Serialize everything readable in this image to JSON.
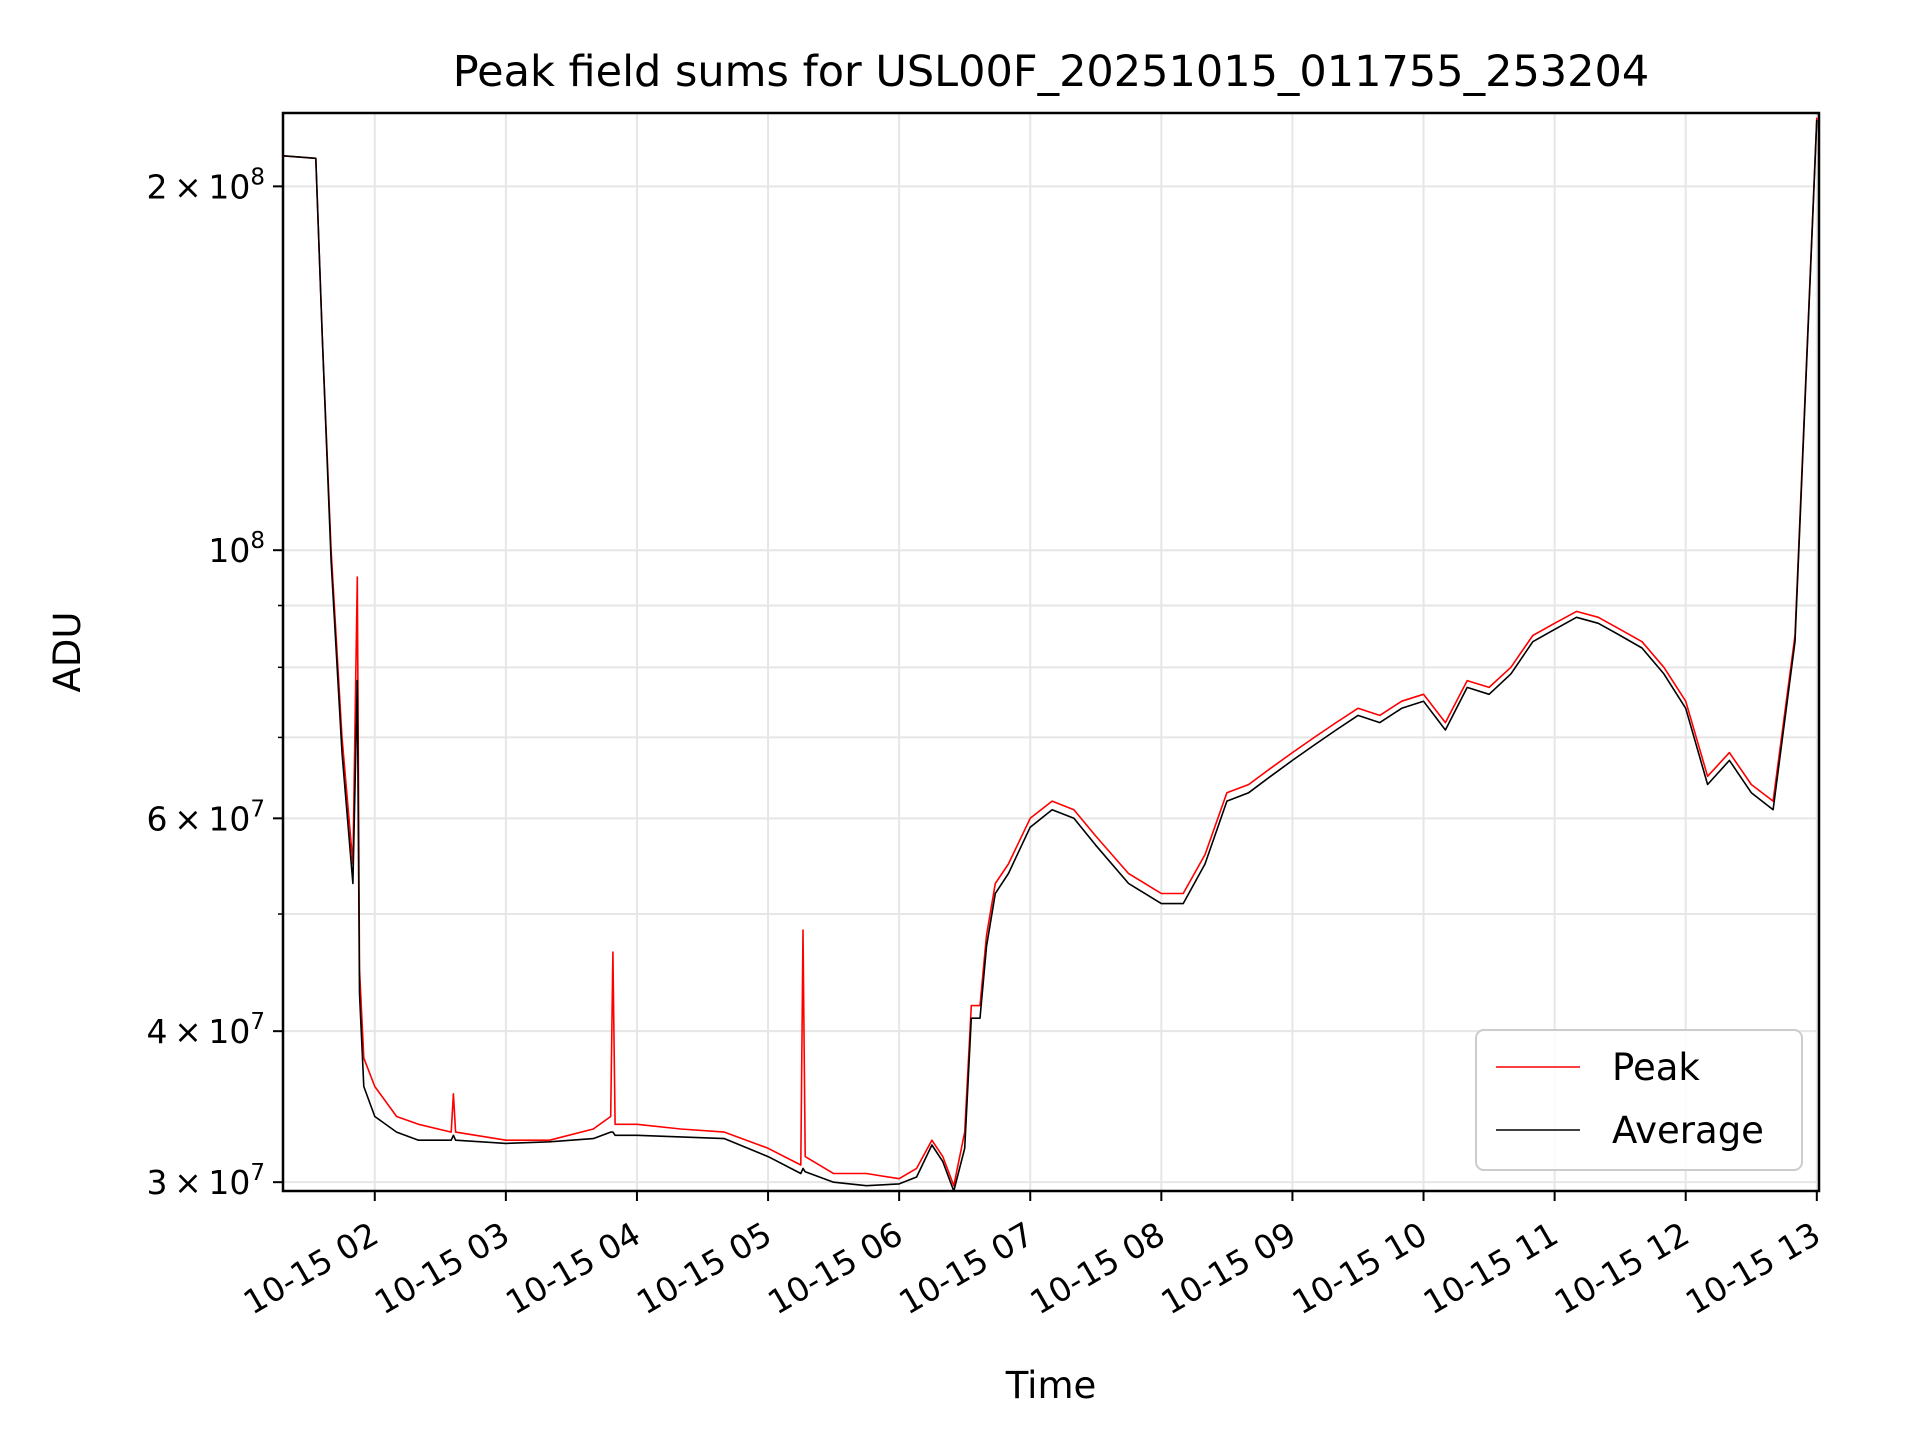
{
  "chart_data": {
    "type": "line",
    "title": "Peak field sums for USL00F_20251015_011755_253204",
    "xlabel": "Time",
    "ylabel": "ADU",
    "yscale": "log",
    "xlim": [
      "2025-10-15 01:18",
      "2025-10-15 13:01"
    ],
    "ylim": [
      29500000,
      230000000
    ],
    "grid": true,
    "legend_position": "lower right",
    "x_ticks": [
      {
        "value": "2025-10-15 02:00",
        "label": "10-15 02"
      },
      {
        "value": "2025-10-15 03:00",
        "label": "10-15 03"
      },
      {
        "value": "2025-10-15 04:00",
        "label": "10-15 04"
      },
      {
        "value": "2025-10-15 05:00",
        "label": "10-15 05"
      },
      {
        "value": "2025-10-15 06:00",
        "label": "10-15 06"
      },
      {
        "value": "2025-10-15 07:00",
        "label": "10-15 07"
      },
      {
        "value": "2025-10-15 08:00",
        "label": "10-15 08"
      },
      {
        "value": "2025-10-15 09:00",
        "label": "10-15 09"
      },
      {
        "value": "2025-10-15 10:00",
        "label": "10-15 10"
      },
      {
        "value": "2025-10-15 11:00",
        "label": "10-15 11"
      },
      {
        "value": "2025-10-15 12:00",
        "label": "10-15 12"
      },
      {
        "value": "2025-10-15 13:00",
        "label": "10-15 13"
      }
    ],
    "y_ticks_major": [
      {
        "value": 30000000,
        "base": "3",
        "exp": "7"
      },
      {
        "value": 40000000,
        "base": "4",
        "exp": "7"
      },
      {
        "value": 60000000,
        "base": "6",
        "exp": "7"
      },
      {
        "value": 100000000,
        "base": "",
        "exp": "8"
      },
      {
        "value": 200000000,
        "base": "2",
        "exp": "8"
      }
    ],
    "y_ticks_minor": [
      50000000,
      70000000,
      80000000,
      90000000
    ],
    "series": [
      {
        "name": "Peak",
        "color": "#ff0000",
        "x": [
          "2025-10-15 01:18",
          "2025-10-15 01:33",
          "2025-10-15 01:36",
          "2025-10-15 01:40",
          "2025-10-15 01:45",
          "2025-10-15 01:50",
          "2025-10-15 01:52",
          "2025-10-15 01:53",
          "2025-10-15 01:55",
          "2025-10-15 02:00",
          "2025-10-15 02:10",
          "2025-10-15 02:20",
          "2025-10-15 02:35",
          "2025-10-15 02:36",
          "2025-10-15 02:37",
          "2025-10-15 03:00",
          "2025-10-15 03:20",
          "2025-10-15 03:40",
          "2025-10-15 03:48",
          "2025-10-15 03:49",
          "2025-10-15 03:50",
          "2025-10-15 04:00",
          "2025-10-15 04:20",
          "2025-10-15 04:40",
          "2025-10-15 05:00",
          "2025-10-15 05:15",
          "2025-10-15 05:16",
          "2025-10-15 05:17",
          "2025-10-15 05:30",
          "2025-10-15 05:45",
          "2025-10-15 06:00",
          "2025-10-15 06:08",
          "2025-10-15 06:15",
          "2025-10-15 06:20",
          "2025-10-15 06:25",
          "2025-10-15 06:30",
          "2025-10-15 06:33",
          "2025-10-15 06:37",
          "2025-10-15 06:40",
          "2025-10-15 06:44",
          "2025-10-15 06:50",
          "2025-10-15 07:00",
          "2025-10-15 07:10",
          "2025-10-15 07:20",
          "2025-10-15 07:30",
          "2025-10-15 07:45",
          "2025-10-15 08:00",
          "2025-10-15 08:10",
          "2025-10-15 08:20",
          "2025-10-15 08:30",
          "2025-10-15 08:40",
          "2025-10-15 08:50",
          "2025-10-15 09:00",
          "2025-10-15 09:10",
          "2025-10-15 09:20",
          "2025-10-15 09:30",
          "2025-10-15 09:40",
          "2025-10-15 09:50",
          "2025-10-15 10:00",
          "2025-10-15 10:10",
          "2025-10-15 10:20",
          "2025-10-15 10:30",
          "2025-10-15 10:40",
          "2025-10-15 10:50",
          "2025-10-15 11:00",
          "2025-10-15 11:10",
          "2025-10-15 11:20",
          "2025-10-15 11:30",
          "2025-10-15 11:40",
          "2025-10-15 11:50",
          "2025-10-15 12:00",
          "2025-10-15 12:10",
          "2025-10-15 12:20",
          "2025-10-15 12:30",
          "2025-10-15 12:40",
          "2025-10-15 12:50",
          "2025-10-15 13:00"
        ],
        "y": [
          212000000,
          211000000,
          150000000,
          100000000,
          70000000,
          55000000,
          95000000,
          45000000,
          38000000,
          36000000,
          34000000,
          33500000,
          33000000,
          35500000,
          33000000,
          32500000,
          32500000,
          33200000,
          34000000,
          46500000,
          33500000,
          33500000,
          33200000,
          33000000,
          32000000,
          31000000,
          48500000,
          31500000,
          30500000,
          30500000,
          30200000,
          30800000,
          32500000,
          31500000,
          29800000,
          33000000,
          42000000,
          42000000,
          48000000,
          53000000,
          55000000,
          60000000,
          62000000,
          61000000,
          58000000,
          54000000,
          52000000,
          52000000,
          56000000,
          63000000,
          64000000,
          66000000,
          68000000,
          70000000,
          72000000,
          74000000,
          73000000,
          75000000,
          76000000,
          72000000,
          78000000,
          77000000,
          80000000,
          85000000,
          87000000,
          89000000,
          88000000,
          86000000,
          84000000,
          80000000,
          75000000,
          65000000,
          68000000,
          64000000,
          62000000,
          85000000,
          228000000
        ]
      },
      {
        "name": "Average",
        "color": "#000000",
        "x": [
          "2025-10-15 01:18",
          "2025-10-15 01:33",
          "2025-10-15 01:36",
          "2025-10-15 01:40",
          "2025-10-15 01:45",
          "2025-10-15 01:50",
          "2025-10-15 01:52",
          "2025-10-15 01:53",
          "2025-10-15 01:55",
          "2025-10-15 02:00",
          "2025-10-15 02:10",
          "2025-10-15 02:20",
          "2025-10-15 02:35",
          "2025-10-15 02:36",
          "2025-10-15 02:37",
          "2025-10-15 03:00",
          "2025-10-15 03:20",
          "2025-10-15 03:40",
          "2025-10-15 03:48",
          "2025-10-15 03:49",
          "2025-10-15 03:50",
          "2025-10-15 04:00",
          "2025-10-15 04:20",
          "2025-10-15 04:40",
          "2025-10-15 05:00",
          "2025-10-15 05:15",
          "2025-10-15 05:16",
          "2025-10-15 05:17",
          "2025-10-15 05:30",
          "2025-10-15 05:45",
          "2025-10-15 06:00",
          "2025-10-15 06:08",
          "2025-10-15 06:15",
          "2025-10-15 06:20",
          "2025-10-15 06:25",
          "2025-10-15 06:30",
          "2025-10-15 06:33",
          "2025-10-15 06:37",
          "2025-10-15 06:40",
          "2025-10-15 06:44",
          "2025-10-15 06:50",
          "2025-10-15 07:00",
          "2025-10-15 07:10",
          "2025-10-15 07:20",
          "2025-10-15 07:30",
          "2025-10-15 07:45",
          "2025-10-15 08:00",
          "2025-10-15 08:10",
          "2025-10-15 08:20",
          "2025-10-15 08:30",
          "2025-10-15 08:40",
          "2025-10-15 08:50",
          "2025-10-15 09:00",
          "2025-10-15 09:10",
          "2025-10-15 09:20",
          "2025-10-15 09:30",
          "2025-10-15 09:40",
          "2025-10-15 09:50",
          "2025-10-15 10:00",
          "2025-10-15 10:10",
          "2025-10-15 10:20",
          "2025-10-15 10:30",
          "2025-10-15 10:40",
          "2025-10-15 10:50",
          "2025-10-15 11:00",
          "2025-10-15 11:10",
          "2025-10-15 11:20",
          "2025-10-15 11:30",
          "2025-10-15 11:40",
          "2025-10-15 11:50",
          "2025-10-15 12:00",
          "2025-10-15 12:10",
          "2025-10-15 12:20",
          "2025-10-15 12:30",
          "2025-10-15 12:40",
          "2025-10-15 12:50",
          "2025-10-15 13:00"
        ],
        "y": [
          212000000,
          211000000,
          150000000,
          98000000,
          68000000,
          53000000,
          78000000,
          43000000,
          36000000,
          34000000,
          33000000,
          32500000,
          32500000,
          32800000,
          32500000,
          32300000,
          32400000,
          32600000,
          33000000,
          33000000,
          32800000,
          32800000,
          32700000,
          32600000,
          31500000,
          30500000,
          30800000,
          30600000,
          30000000,
          29800000,
          29900000,
          30300000,
          32200000,
          31200000,
          29500000,
          32000000,
          41000000,
          41000000,
          47000000,
          52000000,
          54000000,
          59000000,
          61000000,
          60000000,
          57000000,
          53000000,
          51000000,
          51000000,
          55000000,
          62000000,
          63000000,
          65000000,
          67000000,
          69000000,
          71000000,
          73000000,
          72000000,
          74000000,
          75000000,
          71000000,
          77000000,
          76000000,
          79000000,
          84000000,
          86000000,
          88000000,
          87000000,
          85000000,
          83000000,
          79000000,
          74000000,
          64000000,
          67000000,
          63000000,
          61000000,
          84000000,
          227000000
        ]
      }
    ]
  }
}
